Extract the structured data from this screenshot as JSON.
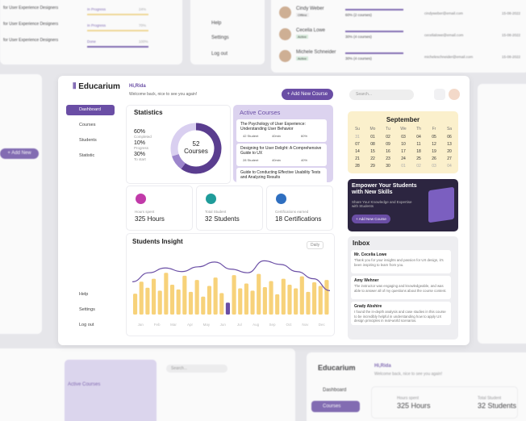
{
  "app": {
    "logo": "Educarium",
    "greeting": "Hi,Rida",
    "welcome": "Welcome back, nice to see you again!",
    "add_course": "+ Add New Course",
    "search": "Search...",
    "menu": [
      "Dashboard",
      "Courses",
      "Students",
      "Statistic"
    ],
    "bottom_menu": [
      "Help",
      "Settings",
      "Log out"
    ]
  },
  "statistics": {
    "title": "Statistics",
    "total": "52",
    "total_label": "Courses",
    "segments": [
      {
        "label": "Completed",
        "value": 60,
        "value_label": "60%",
        "color": "#5a3d8f"
      },
      {
        "label": "Progress",
        "value": 10,
        "value_label": "10%",
        "color": "#9c85cc"
      },
      {
        "label": "To start",
        "value": 30,
        "value_label": "30%",
        "color": "#d9cff0"
      }
    ]
  },
  "active_courses": {
    "title": "Active Courses",
    "items": [
      {
        "title": "The Psychology of User Experience: Understanding User Behavior",
        "students": "42 Student",
        "duration": "40min",
        "progress": "60%"
      },
      {
        "title": "Designing for User Delight: A Comprehensive Guide to UX",
        "students": "28 Student",
        "duration": "40min",
        "progress": "40%"
      },
      {
        "title": "Guide to Conducting Effective Usability Tests and Analyzing Results"
      }
    ]
  },
  "kpis": [
    {
      "label": "Hours spent",
      "value": "325 Hours",
      "color": "#c13aa9"
    },
    {
      "label": "Total Student",
      "value": "32 Students",
      "color": "#1f9c9a"
    },
    {
      "label": "Certifications earned",
      "value": "18 Certifications",
      "color": "#2f6fc0"
    }
  ],
  "insight": {
    "title": "Students Insight",
    "filter": "Daily",
    "months": [
      "Jan",
      "Feb",
      "Mar",
      "Apr",
      "May",
      "Jun",
      "Jul",
      "Aug",
      "Sep",
      "Oct",
      "Nov",
      "Dec"
    ],
    "bars": [
      35,
      55,
      45,
      60,
      40,
      70,
      50,
      42,
      65,
      38,
      58,
      30,
      48,
      62,
      36,
      20,
      66,
      44,
      52,
      40,
      68,
      46,
      56,
      34,
      60,
      50,
      44,
      64,
      38,
      54,
      48,
      58
    ],
    "highlight": 15,
    "line": [
      55,
      70,
      78,
      72,
      80,
      88,
      76,
      70,
      90,
      84,
      72,
      60,
      40
    ]
  },
  "calendar": {
    "month": "September",
    "days": [
      "Su",
      "Mo",
      "Tu",
      "We",
      "Th",
      "Fr",
      "Sa"
    ],
    "weeks": [
      [
        "31",
        "01",
        "02",
        "03",
        "04",
        "05",
        "06"
      ],
      [
        "07",
        "08",
        "09",
        "10",
        "11",
        "12",
        "13"
      ],
      [
        "14",
        "15",
        "16",
        "17",
        "18",
        "19",
        "20"
      ],
      [
        "21",
        "22",
        "23",
        "24",
        "25",
        "26",
        "27"
      ],
      [
        "28",
        "29",
        "30",
        "01",
        "02",
        "03",
        "04"
      ]
    ]
  },
  "promo": {
    "title": "Empower Your Students with New Skills",
    "text": "Share Your Knowledge and Expertise with Students",
    "button": "+ Add New Course"
  },
  "inbox": {
    "title": "Inbox",
    "messages": [
      {
        "name": "Mr. Cecelia Lowe",
        "text": "Thank you for your insights and passion for UX design, it's been inspiring to learn from you."
      },
      {
        "name": "Amy Wehner",
        "text": "The instructor was engaging and knowledgeable, and was able to answer all of my questions about the course content."
      },
      {
        "name": "Grady Abshire",
        "text": "I found the in-depth analysis and case studies in this course to be incredibly helpful in understanding how to apply UX design principles in real-world scenarios."
      }
    ]
  },
  "bg_students": [
    {
      "name": "Cindy Weber",
      "status": "Offline",
      "progress": "60% (2 courses)",
      "email": "cindyweber@email.com",
      "date": "15-08-2022"
    },
    {
      "name": "Cecelia Lowe",
      "status": "Active",
      "progress": "30% (4 courses)",
      "email": "cecelialowe@email.com",
      "date": "15-08-2022"
    },
    {
      "name": "Michele Schneider",
      "status": "Active",
      "progress": "30% (4 courses)",
      "email": "micheleschneider@email.com",
      "date": "15-08-2022"
    }
  ],
  "bg_courses": [
    {
      "title": "for User Experience Designers",
      "status": "In Progress",
      "pct": "24%"
    },
    {
      "title": "for User Experience Designers",
      "status": "In Progress",
      "pct": "70%"
    },
    {
      "title": "for User Experience Designers",
      "status": "Done",
      "pct": "100%"
    }
  ]
}
